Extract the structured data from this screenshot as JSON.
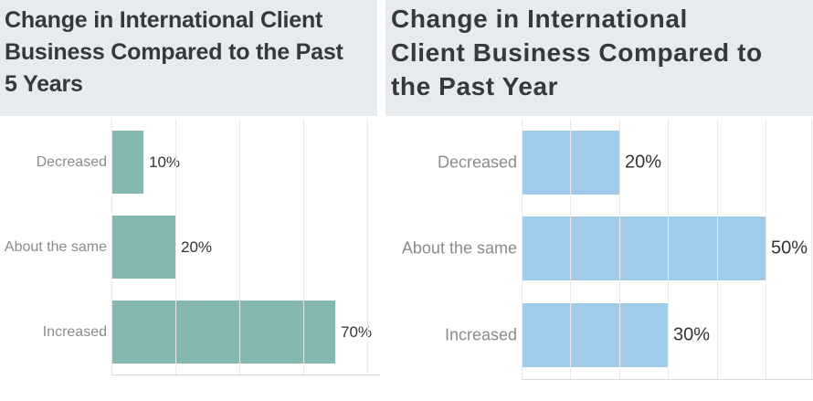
{
  "style": {
    "title_bg": "#e8ebee",
    "title_text": "#35383c",
    "category_label_color": "#8b8b8b",
    "value_label_color": "#343434",
    "gridline_color": "#e9e9e9",
    "axis_color": "#d9d9d9"
  },
  "chart_data": [
    {
      "type": "bar",
      "orientation": "horizontal",
      "title": "Change in International Client\nBusiness Compared to the Past\n5 Years",
      "categories": [
        "Decreased",
        "About the same",
        "Increased"
      ],
      "values": [
        10,
        20,
        70
      ],
      "value_labels": [
        "10%",
        "20%",
        "70%"
      ],
      "value_unit": "%",
      "bar_color": "#85b8b1",
      "xlim": [
        0,
        83
      ],
      "gridline_interval_pct": 20,
      "grid": true,
      "axis_tick_labels_shown": false,
      "legend": "none"
    },
    {
      "type": "bar",
      "orientation": "horizontal",
      "title": "Change in International\nClient Business Compared to\nthe Past Year",
      "categories": [
        "Decreased",
        "About the same",
        "Increased"
      ],
      "values": [
        20,
        50,
        30
      ],
      "value_labels": [
        "20%",
        "50%",
        "30%"
      ],
      "value_unit": "%",
      "bar_color": "#a1cce9",
      "xlim": [
        0,
        59
      ],
      "gridline_interval_pct": 10,
      "grid": true,
      "axis_tick_labels_shown": false,
      "legend": "none"
    }
  ]
}
